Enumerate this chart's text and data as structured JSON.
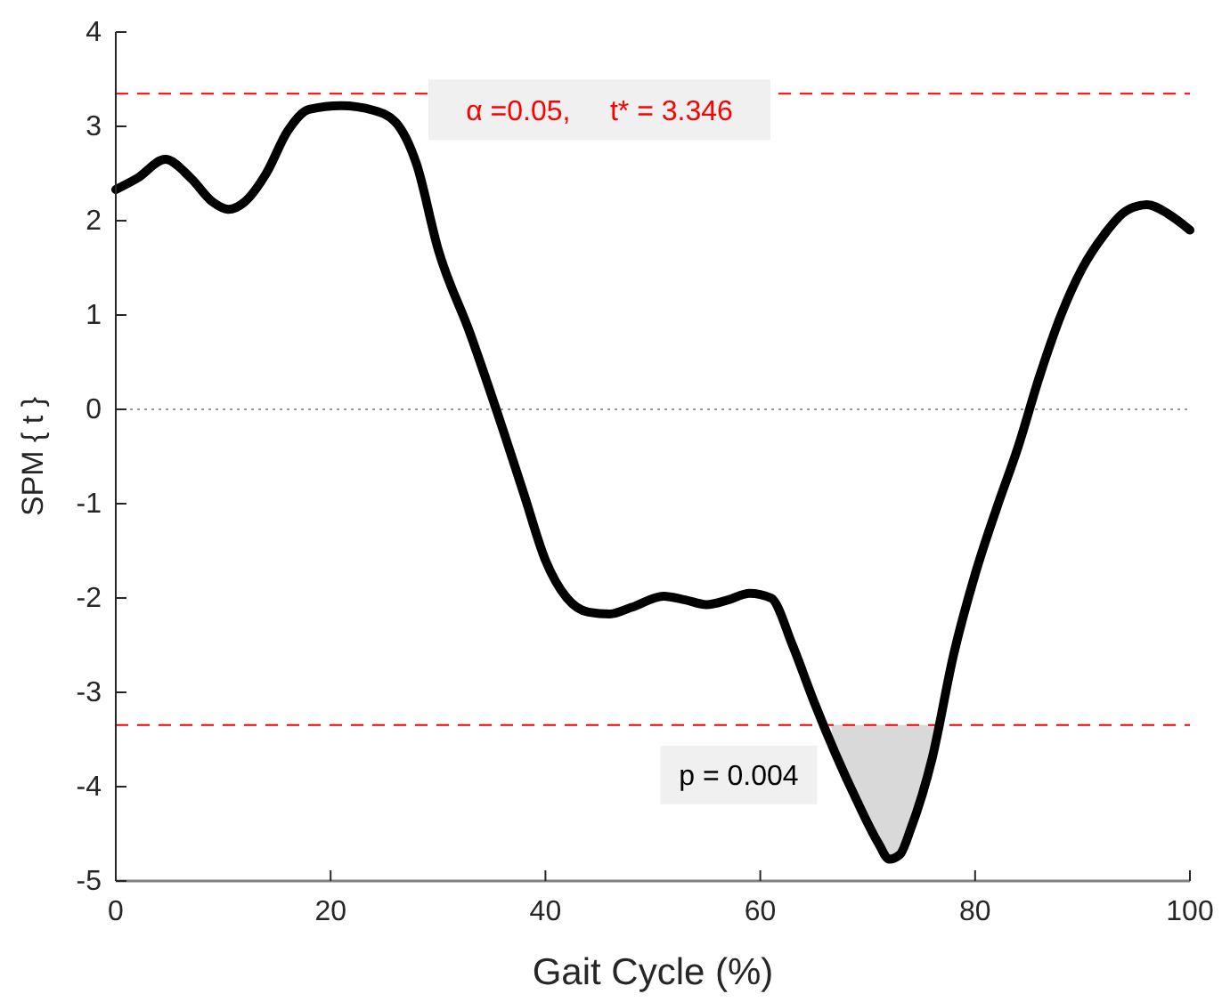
{
  "chart_data": {
    "type": "line",
    "xlabel": "Gait Cycle (%)",
    "ylabel": "SPM { t }",
    "xlim": [
      0,
      100
    ],
    "xticks": [
      0,
      20,
      40,
      60,
      80,
      100
    ],
    "ylim": [
      -5,
      4
    ],
    "yticks": [
      -5,
      -4,
      -3,
      -2,
      -1,
      0,
      1,
      2,
      3,
      4
    ],
    "grid": false,
    "line_style": "solid",
    "series": [
      {
        "type": "area",
        "color": "#d9d9d9",
        "x": [
          66.6,
          67,
          68,
          69,
          70,
          71,
          72,
          73,
          74,
          75,
          76,
          77.1
        ],
        "values": [
          -3.35,
          -3.65,
          -3.9,
          -4.15,
          -4.4,
          -4.6,
          -4.77,
          -4.72,
          -4.45,
          -4.1,
          -3.7,
          -3.35
        ]
      },
      {
        "color": "#000000",
        "x": [
          0,
          2,
          4.6,
          7,
          9,
          10.5,
          12,
          14,
          16,
          18,
          21,
          24,
          26,
          28,
          30,
          33,
          36,
          38,
          40,
          42,
          44,
          46,
          48,
          51,
          53,
          55,
          57,
          59,
          61,
          63,
          65,
          67,
          69,
          71,
          72,
          73,
          74,
          76,
          78,
          80,
          82,
          84,
          86,
          88,
          90,
          92,
          94,
          96,
          98,
          100
        ],
        "values": [
          2.33,
          2.45,
          2.65,
          2.45,
          2.2,
          2.12,
          2.2,
          2.5,
          2.95,
          3.18,
          3.22,
          3.17,
          3.05,
          2.6,
          1.7,
          0.8,
          -0.2,
          -0.9,
          -1.6,
          -2.0,
          -2.15,
          -2.17,
          -2.1,
          -1.98,
          -2.02,
          -2.07,
          -2.02,
          -1.95,
          -2.0,
          -2.5,
          -3.1,
          -3.65,
          -4.15,
          -4.6,
          -4.77,
          -4.72,
          -4.45,
          -3.7,
          -2.6,
          -1.75,
          -1.05,
          -0.4,
          0.35,
          1.0,
          1.5,
          1.85,
          2.1,
          2.17,
          2.07,
          1.9
        ]
      }
    ],
    "ref_lines": [
      {
        "axis": "y",
        "value": 3.346,
        "label": "α =0.05,     t* = 3.346",
        "color": "#ff0000",
        "line_style": "dashed"
      },
      {
        "axis": "y",
        "value": -3.346,
        "color": "#ff0000",
        "line_style": "dashed"
      },
      {
        "axis": "y",
        "value": 0,
        "color": "#999999",
        "line_style": "dotted"
      }
    ],
    "annotations": [
      "p = 0.004"
    ]
  }
}
